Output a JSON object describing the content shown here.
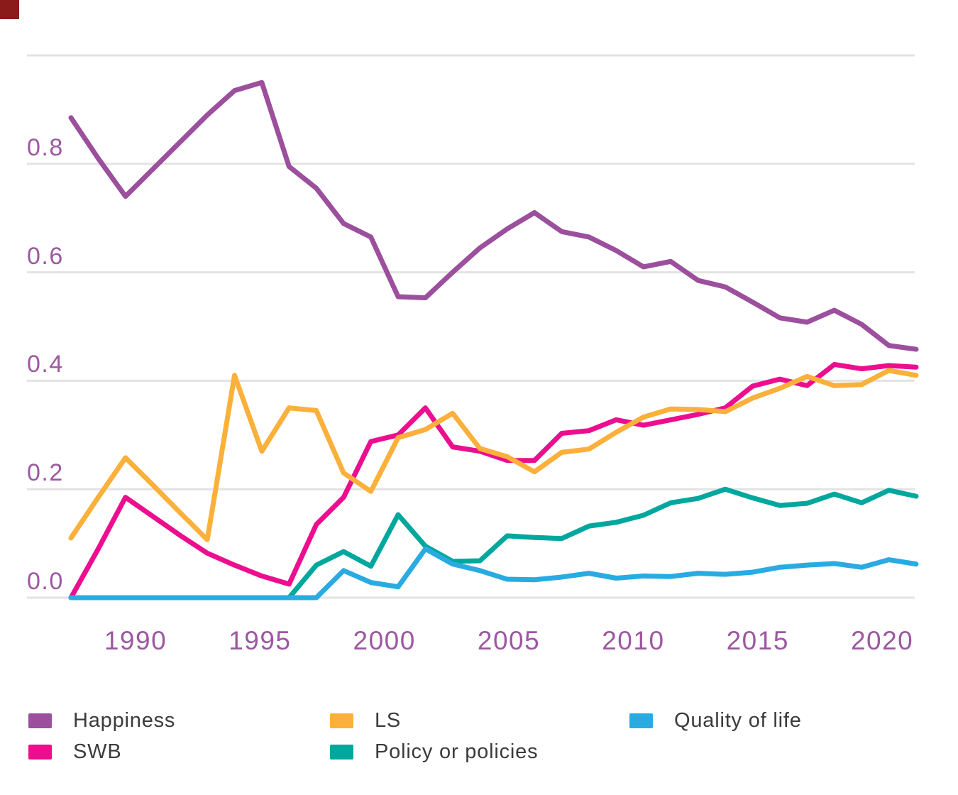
{
  "marker_color": "#8B1B1B",
  "colors": {
    "background": "#ffffff",
    "gridline": "#E3E3E3",
    "axis_label": "#9C58A0",
    "legend_text": "#3B3B3A"
  },
  "chart_data": {
    "type": "line",
    "title": "",
    "xlabel": "",
    "ylabel": "",
    "grid": "horizontal",
    "ylim": [
      0.0,
      1.0
    ],
    "x_years": [
      1987,
      1988,
      1989,
      1990,
      1991,
      1993,
      1994,
      1995,
      1996,
      1997,
      1998,
      1999,
      2000,
      2001,
      2003,
      2004,
      2005,
      2006,
      2007,
      2008,
      2009,
      2010,
      2012,
      2013,
      2014,
      2015,
      2016,
      2017,
      2018,
      2019,
      2020,
      2021
    ],
    "x_ticks": [
      {
        "year": 1990,
        "label": "1990"
      },
      {
        "year": 1995,
        "label": "1995"
      },
      {
        "year": 2000,
        "label": "2000"
      },
      {
        "year": 2005,
        "label": "2005"
      },
      {
        "year": 2010,
        "label": "2010"
      },
      {
        "year": 2015,
        "label": "2015"
      },
      {
        "year": 2020,
        "label": "2020"
      }
    ],
    "y_ticks": [
      {
        "value": 1.0,
        "label": ""
      },
      {
        "value": 0.8,
        "label": "0.8"
      },
      {
        "value": 0.6,
        "label": "0.6"
      },
      {
        "value": 0.4,
        "label": "0.4"
      },
      {
        "value": 0.2,
        "label": "0.2"
      },
      {
        "value": 0.0,
        "label": "0.0"
      }
    ],
    "series": [
      {
        "name": "Happiness",
        "color": "#9B4F9C",
        "values": [
          0.885,
          0.81,
          0.74,
          0.79,
          0.84,
          0.89,
          0.935,
          0.95,
          0.795,
          0.755,
          0.69,
          0.665,
          0.555,
          0.553,
          0.6,
          0.645,
          0.68,
          0.71,
          0.675,
          0.665,
          0.64,
          0.61,
          0.62,
          0.585,
          0.573,
          0.545,
          0.516,
          0.508,
          0.53,
          0.504,
          0.465,
          0.458
        ]
      },
      {
        "name": "SWB",
        "color": "#EC0E8F",
        "values": [
          0.0,
          0.09,
          0.185,
          0.15,
          0.115,
          0.082,
          0.06,
          0.04,
          0.025,
          0.135,
          0.185,
          0.288,
          0.3,
          0.35,
          0.278,
          0.27,
          0.253,
          0.253,
          0.303,
          0.308,
          0.328,
          0.318,
          0.328,
          0.338,
          0.35,
          0.39,
          0.403,
          0.391,
          0.43,
          0.422,
          0.428,
          0.425
        ]
      },
      {
        "name": "LS",
        "color": "#FBB03B",
        "values": [
          0.11,
          0.185,
          0.258,
          0.208,
          0.157,
          0.107,
          0.41,
          0.27,
          0.35,
          0.345,
          0.23,
          0.196,
          0.295,
          0.31,
          0.34,
          0.275,
          0.26,
          0.232,
          0.268,
          0.274,
          0.305,
          0.333,
          0.348,
          0.347,
          0.343,
          0.368,
          0.386,
          0.408,
          0.391,
          0.393,
          0.419,
          0.41
        ]
      },
      {
        "name": "Policy or policies",
        "color": "#00A79D",
        "values": [
          0.0,
          0.0,
          0.0,
          0.0,
          0.0,
          0.0,
          0.0,
          0.0,
          0.0,
          0.06,
          0.085,
          0.058,
          0.153,
          0.095,
          0.067,
          0.068,
          0.114,
          0.111,
          0.109,
          0.132,
          0.139,
          0.152,
          0.175,
          0.183,
          0.2,
          0.184,
          0.17,
          0.174,
          0.191,
          0.175,
          0.198,
          0.187
        ]
      },
      {
        "name": "Quality of life",
        "color": "#29ABE2",
        "values": [
          0.0,
          0.0,
          0.0,
          0.0,
          0.0,
          0.0,
          0.0,
          0.0,
          0.0,
          0.0,
          0.05,
          0.028,
          0.02,
          0.09,
          0.062,
          0.05,
          0.034,
          0.033,
          0.038,
          0.045,
          0.036,
          0.04,
          0.039,
          0.045,
          0.043,
          0.047,
          0.056,
          0.06,
          0.063,
          0.056,
          0.07,
          0.062
        ]
      }
    ],
    "legend_position": "bottom",
    "legend_layout": [
      {
        "series": 0,
        "col": 0,
        "row": 0
      },
      {
        "series": 1,
        "col": 0,
        "row": 1
      },
      {
        "series": 2,
        "col": 1,
        "row": 0
      },
      {
        "series": 3,
        "col": 1,
        "row": 1
      },
      {
        "series": 4,
        "col": 2,
        "row": 0
      }
    ]
  }
}
